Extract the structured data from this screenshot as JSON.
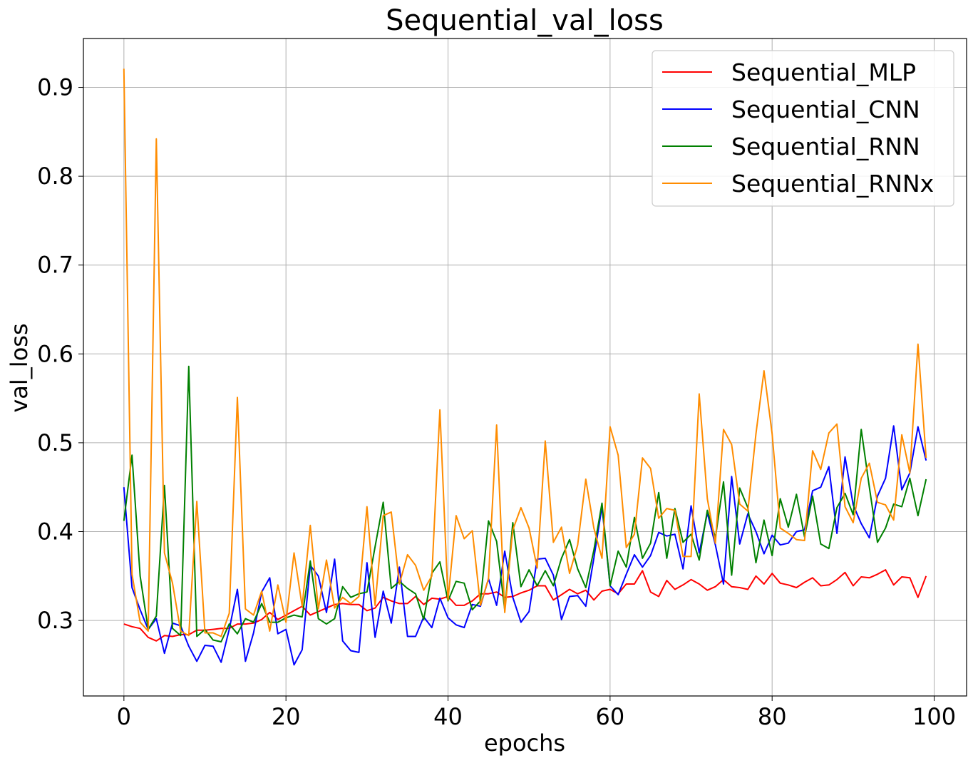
{
  "chart_data": {
    "type": "line",
    "title": "Sequential_val_loss",
    "xlabel": "epochs",
    "ylabel": "val_loss",
    "xlim": [
      -5,
      104
    ],
    "ylim": [
      0.215,
      0.955
    ],
    "xticks": [
      0,
      20,
      40,
      60,
      80,
      100
    ],
    "xtick_labels": [
      "0",
      "20",
      "40",
      "60",
      "80",
      "100"
    ],
    "yticks": [
      0.3,
      0.4,
      0.5,
      0.6,
      0.7,
      0.8,
      0.9
    ],
    "ytick_labels": [
      "0.3",
      "0.4",
      "0.5",
      "0.6",
      "0.7",
      "0.8",
      "0.9"
    ],
    "grid": true,
    "legend_position": "top-right",
    "series": [
      {
        "name": "Sequential_MLP",
        "color": "#ff0000",
        "values": [
          0.296,
          0.293,
          0.291,
          0.281,
          0.277,
          0.283,
          0.282,
          0.284,
          0.284,
          0.289,
          0.289,
          0.29,
          0.291,
          0.291,
          0.296,
          0.296,
          0.297,
          0.301,
          0.309,
          0.301,
          0.306,
          0.311,
          0.316,
          0.306,
          0.31,
          0.314,
          0.318,
          0.319,
          0.318,
          0.318,
          0.311,
          0.314,
          0.326,
          0.322,
          0.319,
          0.319,
          0.327,
          0.318,
          0.325,
          0.324,
          0.327,
          0.317,
          0.317,
          0.322,
          0.33,
          0.33,
          0.332,
          0.326,
          0.327,
          0.331,
          0.334,
          0.339,
          0.339,
          0.323,
          0.329,
          0.335,
          0.33,
          0.334,
          0.323,
          0.333,
          0.335,
          0.33,
          0.341,
          0.341,
          0.356,
          0.332,
          0.327,
          0.345,
          0.335,
          0.34,
          0.346,
          0.341,
          0.334,
          0.338,
          0.346,
          0.338,
          0.337,
          0.335,
          0.35,
          0.341,
          0.353,
          0.342,
          0.34,
          0.337,
          0.343,
          0.348,
          0.339,
          0.34,
          0.346,
          0.354,
          0.339,
          0.349,
          0.348,
          0.352,
          0.357,
          0.34,
          0.349,
          0.348,
          0.326,
          0.35
        ]
      },
      {
        "name": "Sequential_CNN",
        "color": "#0000ff",
        "values": [
          0.45,
          0.337,
          0.312,
          0.29,
          0.302,
          0.263,
          0.297,
          0.294,
          0.271,
          0.254,
          0.272,
          0.271,
          0.253,
          0.29,
          0.335,
          0.254,
          0.286,
          0.332,
          0.348,
          0.285,
          0.29,
          0.25,
          0.267,
          0.362,
          0.35,
          0.309,
          0.369,
          0.277,
          0.266,
          0.264,
          0.365,
          0.281,
          0.333,
          0.297,
          0.36,
          0.282,
          0.282,
          0.304,
          0.292,
          0.325,
          0.303,
          0.295,
          0.292,
          0.318,
          0.316,
          0.347,
          0.317,
          0.378,
          0.326,
          0.298,
          0.31,
          0.369,
          0.37,
          0.351,
          0.301,
          0.327,
          0.328,
          0.316,
          0.37,
          0.428,
          0.339,
          0.329,
          0.352,
          0.374,
          0.36,
          0.373,
          0.399,
          0.395,
          0.397,
          0.358,
          0.429,
          0.376,
          0.421,
          0.385,
          0.341,
          0.462,
          0.386,
          0.42,
          0.4,
          0.375,
          0.396,
          0.385,
          0.387,
          0.4,
          0.402,
          0.446,
          0.45,
          0.473,
          0.398,
          0.484,
          0.43,
          0.409,
          0.393,
          0.44,
          0.46,
          0.519,
          0.447,
          0.466,
          0.518,
          0.48
        ]
      },
      {
        "name": "Sequential_RNN",
        "color": "#008000",
        "values": [
          0.412,
          0.486,
          0.35,
          0.29,
          0.305,
          0.452,
          0.291,
          0.283,
          0.586,
          0.282,
          0.29,
          0.278,
          0.276,
          0.296,
          0.285,
          0.302,
          0.298,
          0.319,
          0.298,
          0.298,
          0.303,
          0.306,
          0.304,
          0.367,
          0.302,
          0.296,
          0.302,
          0.338,
          0.326,
          0.33,
          0.332,
          0.383,
          0.433,
          0.336,
          0.344,
          0.336,
          0.33,
          0.301,
          0.353,
          0.366,
          0.322,
          0.344,
          0.342,
          0.312,
          0.322,
          0.412,
          0.389,
          0.312,
          0.41,
          0.338,
          0.357,
          0.339,
          0.356,
          0.339,
          0.37,
          0.391,
          0.358,
          0.337,
          0.379,
          0.432,
          0.339,
          0.378,
          0.36,
          0.416,
          0.37,
          0.387,
          0.444,
          0.37,
          0.426,
          0.388,
          0.397,
          0.368,
          0.424,
          0.393,
          0.456,
          0.351,
          0.449,
          0.427,
          0.365,
          0.413,
          0.373,
          0.437,
          0.405,
          0.442,
          0.394,
          0.44,
          0.386,
          0.381,
          0.427,
          0.443,
          0.419,
          0.515,
          0.45,
          0.388,
          0.404,
          0.431,
          0.428,
          0.46,
          0.418,
          0.459
        ]
      },
      {
        "name": "Sequential_RNNx",
        "color": "#ff8c00",
        "values": [
          0.921,
          0.352,
          0.298,
          0.288,
          0.842,
          0.376,
          0.342,
          0.288,
          0.283,
          0.434,
          0.286,
          0.286,
          0.282,
          0.308,
          0.551,
          0.313,
          0.306,
          0.333,
          0.288,
          0.34,
          0.298,
          0.376,
          0.316,
          0.407,
          0.313,
          0.368,
          0.314,
          0.326,
          0.319,
          0.327,
          0.428,
          0.317,
          0.418,
          0.422,
          0.341,
          0.374,
          0.362,
          0.334,
          0.35,
          0.537,
          0.323,
          0.418,
          0.392,
          0.401,
          0.317,
          0.347,
          0.52,
          0.309,
          0.402,
          0.427,
          0.404,
          0.359,
          0.502,
          0.388,
          0.405,
          0.353,
          0.385,
          0.459,
          0.404,
          0.37,
          0.518,
          0.486,
          0.382,
          0.397,
          0.483,
          0.471,
          0.415,
          0.426,
          0.424,
          0.372,
          0.372,
          0.555,
          0.437,
          0.387,
          0.515,
          0.498,
          0.431,
          0.423,
          0.51,
          0.581,
          0.51,
          0.404,
          0.398,
          0.391,
          0.39,
          0.491,
          0.47,
          0.511,
          0.521,
          0.428,
          0.41,
          0.46,
          0.477,
          0.433,
          0.43,
          0.413,
          0.509,
          0.466,
          0.611,
          0.483
        ]
      }
    ]
  }
}
